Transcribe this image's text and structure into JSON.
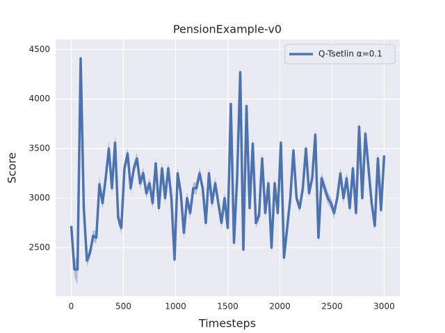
{
  "chart_data": {
    "type": "line",
    "title": "PensionExample-v0",
    "x_label": "Timesteps",
    "y_label": "Score",
    "x": [
      0,
      30,
      60,
      90,
      120,
      150,
      180,
      210,
      240,
      270,
      300,
      330,
      360,
      390,
      420,
      450,
      480,
      510,
      540,
      570,
      600,
      630,
      660,
      690,
      720,
      750,
      780,
      810,
      840,
      870,
      900,
      930,
      960,
      990,
      1020,
      1050,
      1080,
      1110,
      1140,
      1170,
      1200,
      1230,
      1260,
      1290,
      1320,
      1350,
      1380,
      1410,
      1440,
      1470,
      1500,
      1530,
      1560,
      1590,
      1620,
      1650,
      1680,
      1710,
      1740,
      1770,
      1800,
      1830,
      1860,
      1890,
      1920,
      1950,
      1980,
      2010,
      2040,
      2070,
      2100,
      2130,
      2160,
      2190,
      2220,
      2250,
      2280,
      2310,
      2340,
      2370,
      2400,
      2430,
      2460,
      2490,
      2520,
      2550,
      2580,
      2610,
      2640,
      2670,
      2700,
      2730,
      2760,
      2790,
      2820,
      2850,
      2880,
      2910,
      2940,
      2970,
      3000
    ],
    "series": [
      {
        "name": "Q-Tsetlin α=0.1",
        "color": "#4c72b0",
        "values": [
          2720,
          2280,
          2280,
          4410,
          2900,
          2370,
          2450,
          2620,
          2600,
          3140,
          2950,
          3200,
          3500,
          3100,
          3560,
          2800,
          2700,
          3300,
          3450,
          3100,
          3300,
          3400,
          3150,
          3250,
          3050,
          3150,
          2950,
          3350,
          2900,
          3300,
          3000,
          3300,
          3000,
          2380,
          3250,
          3050,
          2650,
          3000,
          2850,
          3100,
          3100,
          3250,
          3100,
          2750,
          3250,
          2950,
          3150,
          2950,
          2750,
          3000,
          2700,
          3950,
          2550,
          3200,
          4270,
          2480,
          3930,
          2900,
          3550,
          2750,
          2820,
          3400,
          2850,
          3150,
          2500,
          3150,
          2850,
          3560,
          2400,
          2700,
          3000,
          3480,
          3000,
          2900,
          3100,
          3500,
          3050,
          3200,
          3640,
          2600,
          3200,
          3100,
          3000,
          2950,
          2850,
          3000,
          3250,
          3000,
          3200,
          2900,
          3300,
          2850,
          3720,
          3000,
          3650,
          3300,
          2950,
          2720,
          3400,
          2880,
          3430
        ],
        "ci": [
          40,
          80,
          150,
          60,
          60,
          60,
          60,
          60,
          60,
          80,
          60,
          60,
          80,
          60,
          80,
          60,
          60,
          60,
          60,
          60,
          60,
          60,
          60,
          60,
          60,
          60,
          60,
          60,
          60,
          60,
          60,
          60,
          60,
          40,
          60,
          60,
          60,
          60,
          60,
          60,
          60,
          60,
          60,
          60,
          60,
          60,
          60,
          60,
          60,
          60,
          50,
          50,
          50,
          50,
          50,
          50,
          50,
          50,
          50,
          50,
          50,
          50,
          50,
          50,
          50,
          50,
          50,
          50,
          50,
          50,
          50,
          50,
          50,
          50,
          50,
          50,
          50,
          50,
          50,
          50,
          60,
          60,
          60,
          60,
          60,
          60,
          60,
          60,
          60,
          60,
          50,
          50,
          50,
          50,
          50,
          50,
          50,
          50,
          50,
          50,
          40
        ]
      }
    ],
    "xlim": [
      -150,
      3150
    ],
    "ylim": [
      2010,
      4600
    ],
    "xticks": [
      0,
      500,
      1000,
      1500,
      2000,
      2500,
      3000
    ],
    "yticks": [
      2500,
      3000,
      3500,
      4000,
      4500
    ],
    "grid": true,
    "legend": "upper right"
  }
}
